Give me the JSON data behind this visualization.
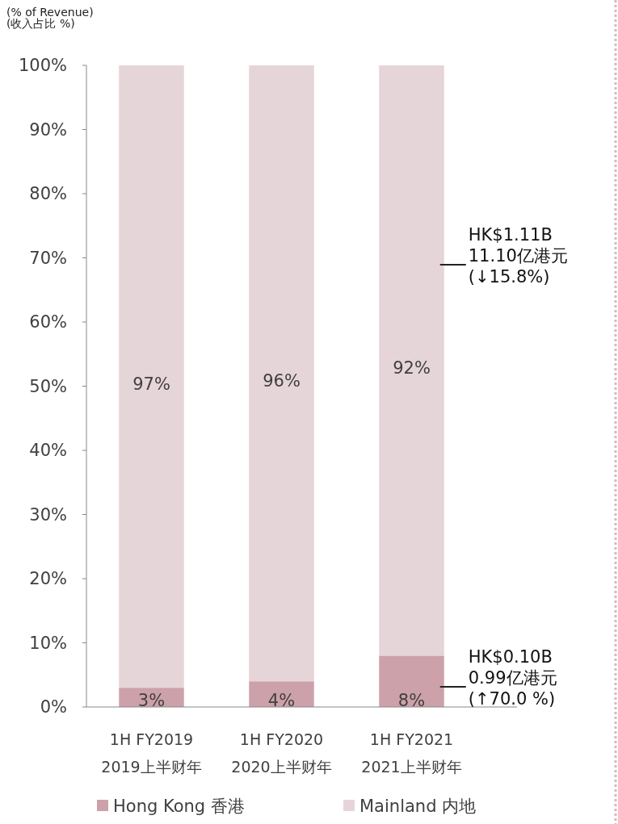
{
  "chart_data": {
    "type": "bar",
    "stacked": true,
    "ylabel": "(% of Revenue)\n(收入占比 %)",
    "categories": [
      "1H FY2019\n2019上半财年",
      "1H FY2020\n2020上半财年",
      "1H FY2021\n2021上半财年"
    ],
    "series": [
      {
        "name": "Hong Kong 香港",
        "color": "#cda1aa",
        "values": [
          3,
          4,
          8
        ],
        "value_labels": [
          "3%",
          "4%",
          "8%"
        ]
      },
      {
        "name": "Mainland 内地",
        "color": "#e6d5d8",
        "values": [
          97,
          96,
          92
        ],
        "value_labels": [
          "97%",
          "96%",
          "92%"
        ]
      }
    ],
    "ylim": [
      0,
      100
    ],
    "yticks": [
      {
        "value": 0,
        "label": "0%"
      },
      {
        "value": 10,
        "label": "10%"
      },
      {
        "value": 20,
        "label": "20%"
      },
      {
        "value": 30,
        "label": "30%"
      },
      {
        "value": 40,
        "label": "40%"
      },
      {
        "value": 50,
        "label": "50%"
      },
      {
        "value": 60,
        "label": "60%"
      },
      {
        "value": 70,
        "label": "70%"
      },
      {
        "value": 80,
        "label": "80%"
      },
      {
        "value": 90,
        "label": "90%"
      },
      {
        "value": 100,
        "label": "100%"
      }
    ],
    "annotations": [
      "HK$1.11B\n11.10亿港元\n(↓15.8%)",
      "HK$0.10B\n0.99亿港元\n(↑70.0 %)"
    ],
    "legend": "bottom",
    "grid": false
  }
}
